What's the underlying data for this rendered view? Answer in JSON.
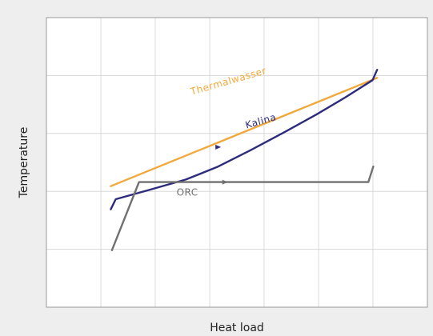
{
  "chart_data": {
    "type": "line",
    "title": "",
    "xlabel": "Heat load",
    "ylabel": "Temperature",
    "xlim": [
      0,
      100
    ],
    "ylim": [
      0,
      100
    ],
    "grid": true,
    "ticks_labeled": false,
    "background": "#eeeeee",
    "plot_background": "#ffffff",
    "grid_color": "#d8d8d8",
    "series": [
      {
        "name": "Thermalwasser",
        "color": "#f2a93b",
        "label_at": {
          "x": 48,
          "y": 77,
          "angle": -16
        },
        "points": [
          [
            16.9,
            41.8
          ],
          [
            86.8,
            79.2
          ]
        ]
      },
      {
        "name": "Kalina",
        "color": "#2d2c7c",
        "label_at": {
          "x": 56.5,
          "y": 63.2,
          "angle": -16
        },
        "arrow_at": [
          45.2,
          55.3
        ],
        "points": [
          [
            16.9,
            33.8
          ],
          [
            18.2,
            37.3
          ],
          [
            27.0,
            40.5
          ],
          [
            36.6,
            44.1
          ],
          [
            44.8,
            48.4
          ],
          [
            53.4,
            54.1
          ],
          [
            62.3,
            60.3
          ],
          [
            70.8,
            66.5
          ],
          [
            78.4,
            72.4
          ],
          [
            85.6,
            78.4
          ],
          [
            86.8,
            82.0
          ]
        ]
      },
      {
        "name": "ORC",
        "color": "#707070",
        "label_at": {
          "x": 37,
          "y": 38.5,
          "angle": 0
        },
        "arrow_at": [
          47.0,
          43.2
        ],
        "points": [
          [
            17.2,
            19.7
          ],
          [
            24.3,
            43.2
          ],
          [
            84.5,
            43.2
          ],
          [
            85.8,
            48.6
          ]
        ]
      }
    ]
  }
}
